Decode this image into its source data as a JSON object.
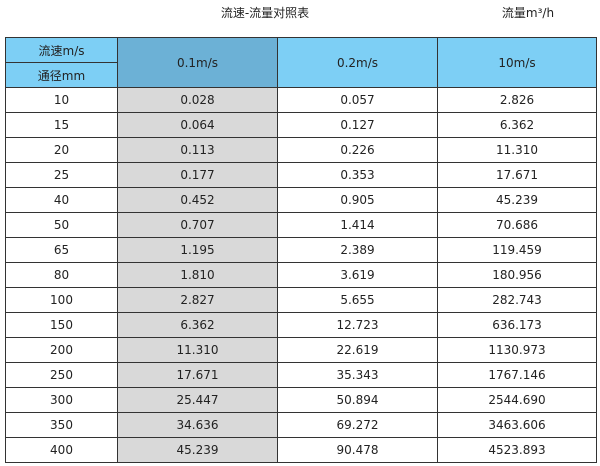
{
  "title": "流速-流量对照表",
  "unit": "流量m³/h",
  "header": {
    "velocity_label": "流速m/s",
    "diameter_label": "通径mm",
    "columns": [
      "0.1m/s",
      "0.2m/s",
      "10m/s"
    ]
  },
  "rows": [
    [
      "10",
      "0.028",
      "0.057",
      "2.826"
    ],
    [
      "15",
      "0.064",
      "0.127",
      "6.362"
    ],
    [
      "20",
      "0.113",
      "0.226",
      "11.310"
    ],
    [
      "25",
      "0.177",
      "0.353",
      "17.671"
    ],
    [
      "40",
      "0.452",
      "0.905",
      "45.239"
    ],
    [
      "50",
      "0.707",
      "1.414",
      "70.686"
    ],
    [
      "65",
      "1.195",
      "2.389",
      "119.459"
    ],
    [
      "80",
      "1.810",
      "3.619",
      "180.956"
    ],
    [
      "100",
      "2.827",
      "5.655",
      "282.743"
    ],
    [
      "150",
      "6.362",
      "12.723",
      "636.173"
    ],
    [
      "200",
      "11.310",
      "22.619",
      "1130.973"
    ],
    [
      "250",
      "17.671",
      "35.343",
      "1767.146"
    ],
    [
      "300",
      "25.447",
      "50.894",
      "2544.690"
    ],
    [
      "350",
      "34.636",
      "69.272",
      "3463.606"
    ],
    [
      "400",
      "45.239",
      "90.478",
      "4523.893"
    ]
  ],
  "colors": {
    "header": "#7dcff5",
    "highlight_header": "#6cb1d6",
    "highlight_column": "#d9d9d9"
  }
}
